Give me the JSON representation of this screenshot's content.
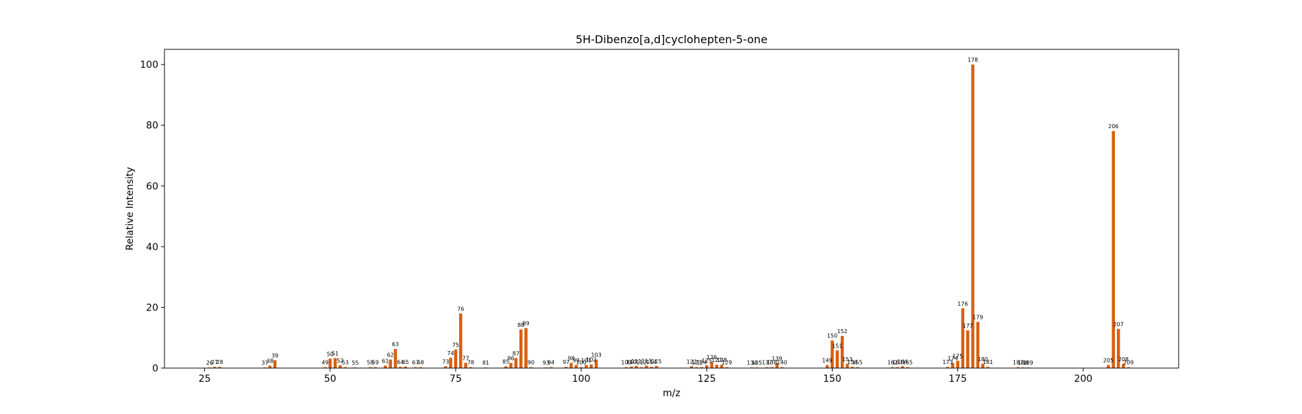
{
  "chart_data": {
    "type": "bar",
    "title": "5H-Dibenzo[a,d]cyclohepten-5-one",
    "xlabel": "m/z",
    "ylabel": "Relative Intensity",
    "xlim": [
      17,
      219
    ],
    "ylim": [
      0,
      105
    ],
    "xticks": [
      25,
      50,
      75,
      100,
      125,
      150,
      175,
      200
    ],
    "yticks": [
      0,
      20,
      40,
      60,
      80,
      100
    ],
    "grid": false,
    "bar_color": "#d95f0e",
    "x": [
      26,
      27,
      28,
      37,
      38,
      39,
      49,
      50,
      51,
      52,
      53,
      55,
      58,
      59,
      61,
      62,
      63,
      64,
      65,
      67,
      68,
      73,
      74,
      75,
      76,
      77,
      78,
      81,
      85,
      86,
      87,
      88,
      89,
      90,
      93,
      94,
      97,
      98,
      99,
      100,
      101,
      102,
      103,
      109,
      110,
      111,
      112,
      113,
      114,
      115,
      122,
      123,
      124,
      125,
      126,
      127,
      128,
      129,
      134,
      135,
      137,
      138,
      139,
      140,
      149,
      150,
      151,
      152,
      153,
      154,
      155,
      162,
      163,
      164,
      165,
      173,
      174,
      175,
      176,
      177,
      178,
      179,
      180,
      181,
      187,
      188,
      189,
      205,
      206,
      207,
      208,
      209
    ],
    "values": [
      0.2,
      0.4,
      0.4,
      0.2,
      0.8,
      2.6,
      0.3,
      3.1,
      3.3,
      0.9,
      0.3,
      0.2,
      0.3,
      0.3,
      0.8,
      2.8,
      6.3,
      0.4,
      0.5,
      0.3,
      0.3,
      0.6,
      3.4,
      6.1,
      18.0,
      1.7,
      0.3,
      0.2,
      0.6,
      1.7,
      3.3,
      12.7,
      13.2,
      0.3,
      0.2,
      0.3,
      0.4,
      1.7,
      1.0,
      0.3,
      1.0,
      1.2,
      2.8,
      0.3,
      0.5,
      0.7,
      0.3,
      0.8,
      0.4,
      0.7,
      0.6,
      0.3,
      0.3,
      0.9,
      2.0,
      1.1,
      1.1,
      0.3,
      0.2,
      0.2,
      0.3,
      0.3,
      1.6,
      0.3,
      1.0,
      9.1,
      5.8,
      10.6,
      1.4,
      0.4,
      0.3,
      0.3,
      0.3,
      0.6,
      0.3,
      0.4,
      1.7,
      2.4,
      19.7,
      12.4,
      100.0,
      15.2,
      1.4,
      0.4,
      0.3,
      0.2,
      0.2,
      1.0,
      78.1,
      12.9,
      1.4,
      0.3
    ],
    "bar_labels": [
      "26",
      "27",
      "28",
      "37",
      "38",
      "39",
      "49",
      "50",
      "51",
      "52",
      "53",
      "55",
      "58",
      "59",
      "61",
      "62",
      "63",
      "64",
      "65",
      "67",
      "68",
      "73",
      "74",
      "75",
      "76",
      "77",
      "78",
      "81",
      "85",
      "86",
      "87",
      "88",
      "89",
      "90",
      "93",
      "94",
      "97",
      "98",
      "99",
      "100",
      "101",
      "102",
      "103",
      "109",
      "110",
      "111",
      "112",
      "113",
      "114",
      "115",
      "122",
      "123",
      "124",
      "125",
      "126",
      "127",
      "128",
      "129",
      "134",
      "135",
      "137",
      "138",
      "139",
      "140",
      "149",
      "150",
      "151",
      "152",
      "153",
      "154",
      "155",
      "162",
      "163",
      "164",
      "165",
      "173",
      "174",
      "175",
      "176",
      "177",
      "178",
      "179",
      "180",
      "181",
      "187",
      "188",
      "189",
      "205",
      "206",
      "207",
      "208",
      "209"
    ]
  }
}
